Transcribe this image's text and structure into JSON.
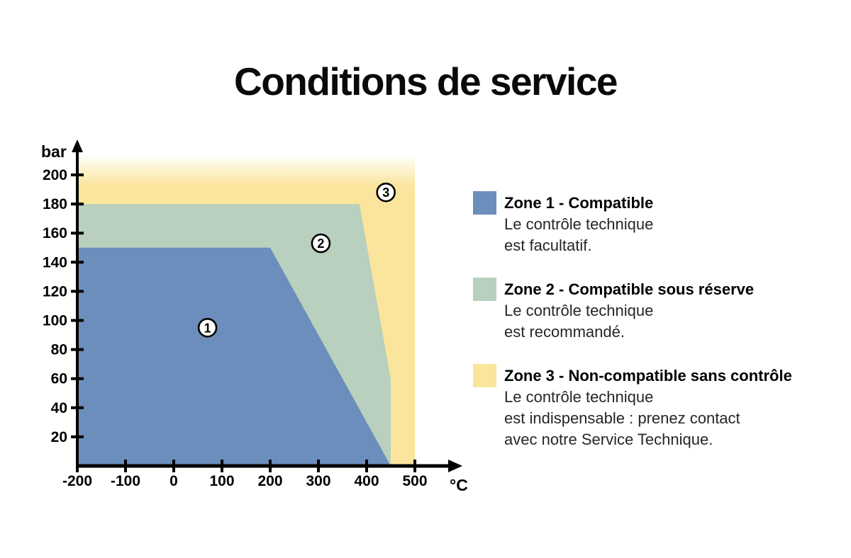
{
  "title": "Conditions de service",
  "chart_data": {
    "type": "area",
    "title": "Conditions de service",
    "xlabel": "°C",
    "ylabel": "bar",
    "xlim": [
      -200,
      560
    ],
    "ylim": [
      0,
      220
    ],
    "grid": false,
    "x_ticks": [
      -200,
      -100,
      0,
      100,
      200,
      300,
      400,
      500
    ],
    "y_ticks": [
      20,
      40,
      60,
      80,
      100,
      120,
      140,
      160,
      180,
      200
    ],
    "zones": [
      {
        "id": 1,
        "name": "Zone 1 - Compatible",
        "color": "#6c8ebc",
        "polygon": [
          [
            -200,
            0
          ],
          [
            -200,
            150
          ],
          [
            200,
            150
          ],
          [
            450,
            0
          ]
        ],
        "badge_at": [
          70,
          95
        ],
        "fade_top": false
      },
      {
        "id": 2,
        "name": "Zone 2 - Compatible sous réserve",
        "color": "#b8d0bd",
        "polygon": [
          [
            -200,
            0
          ],
          [
            -200,
            180
          ],
          [
            385,
            180
          ],
          [
            450,
            60
          ],
          [
            450,
            0
          ]
        ],
        "badge_at": [
          305,
          153
        ],
        "fade_top": false
      },
      {
        "id": 3,
        "name": "Zone 3 - Non-compatible sans contrôle",
        "color": "#fbe59c",
        "polygon": [
          [
            -200,
            0
          ],
          [
            -200,
            214
          ],
          [
            500,
            214
          ],
          [
            500,
            0
          ]
        ],
        "badge_at": [
          440,
          188
        ],
        "fade_top": true
      }
    ]
  },
  "legend": {
    "items": [
      {
        "title": "Zone 1 - Compatible",
        "lines": [
          "Le contrôle technique",
          "est facultatif."
        ],
        "color": "#6c8ebc"
      },
      {
        "title": "Zone 2 - Compatible sous réserve",
        "lines": [
          "Le contrôle technique",
          "est recommandé."
        ],
        "color": "#b8d0bd"
      },
      {
        "title": "Zone 3 - Non-compatible sans contrôle",
        "lines": [
          "Le contrôle technique",
          "est indispensable : prenez contact",
          "avec notre Service Technique."
        ],
        "color": "#fbe59c"
      }
    ]
  }
}
